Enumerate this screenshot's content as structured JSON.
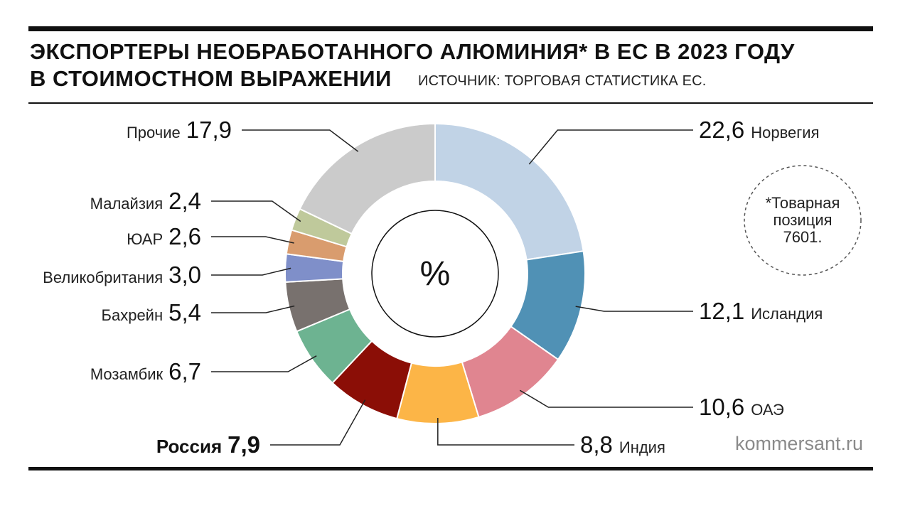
{
  "title_line1": "ЭКСПОРТЕРЫ НЕОБРАБОТАННОГО АЛЮМИНИЯ* В ЕС В 2023 ГОДУ",
  "title_line2": "В СТОИМОСТНОМ ВЫРАЖЕНИИ",
  "source": "ИСТОЧНИК: ТОРГОВАЯ СТАТИСТИКА ЕС.",
  "footnote": "*Товарная\nпозиция\n7601.",
  "site": "kommersant.ru",
  "chart_data": {
    "type": "pie",
    "style": "donut",
    "center_label": "%",
    "categories": [
      "Норвегия",
      "Исландия",
      "ОАЭ",
      "Индия",
      "Россия",
      "Мозамбик",
      "Бахрейн",
      "Великобритания",
      "ЮАР",
      "Малайзия",
      "Прочие"
    ],
    "values": [
      22.6,
      12.1,
      10.6,
      8.8,
      7.9,
      6.7,
      5.4,
      3.0,
      2.6,
      2.4,
      17.9
    ],
    "value_labels": [
      "22,6",
      "12,1",
      "10,6",
      "8,8",
      "7,9",
      "6,7",
      "5,4",
      "3,0",
      "2,6",
      "2,4",
      "17,9"
    ],
    "colors": [
      "#c1d3e6",
      "#5091b5",
      "#e08590",
      "#fcb547",
      "#8b0e06",
      "#6db391",
      "#78716e",
      "#7f8fc9",
      "#d99c6e",
      "#bfc99b",
      "#cbcbcb"
    ],
    "highlight": "Россия"
  }
}
